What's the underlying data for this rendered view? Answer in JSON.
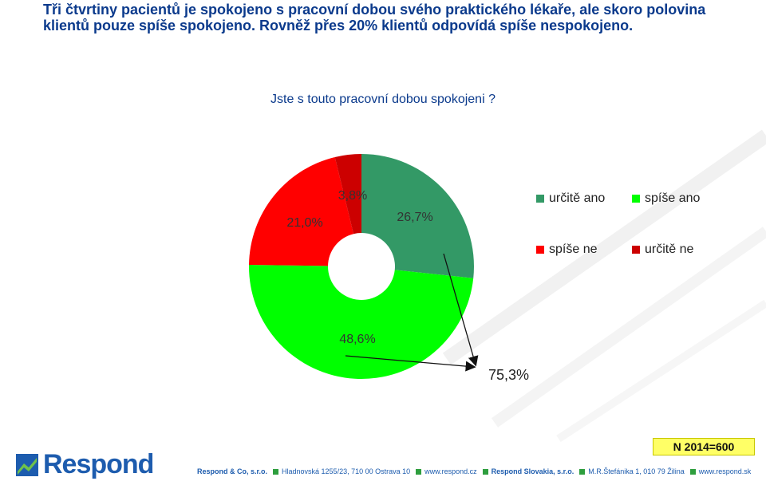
{
  "headline": "Tři čtvrtiny pacientů je spokojeno s pracovní dobou svého praktického lékaře, ale skoro polovina klientů pouze spíše spokojeno. Rovněž přes 20% klientů odpovídá spíše nespokojeno.",
  "chart_data": {
    "type": "pie",
    "title": "Jste s touto pracovní dobou spokojeni ?",
    "categories": [
      "určitě ano",
      "spíše ano",
      "spíše ne",
      "určitě ne"
    ],
    "values": [
      26.7,
      48.6,
      21.0,
      3.8
    ],
    "labels": [
      "26,7%",
      "48,6%",
      "21,0%",
      "3,8%"
    ],
    "colors": [
      "#339966",
      "#00ff00",
      "#ff0000",
      "#cc0000"
    ],
    "legend_position": "right",
    "annotation": "75,3%"
  },
  "n_label": "N 2014=600",
  "logo": {
    "text": "Respond"
  },
  "footer": {
    "company1": "Respond & Co, s.r.o.",
    "address1": "Hladnovská 1255/23, 710 00  Ostrava 10",
    "web1": "www.respond.cz",
    "company2": "Respond Slovakia, s.r.o.",
    "address2": "M.R.Štefánika 1, 010 79  Žilina",
    "web2": "www.respond.sk"
  }
}
